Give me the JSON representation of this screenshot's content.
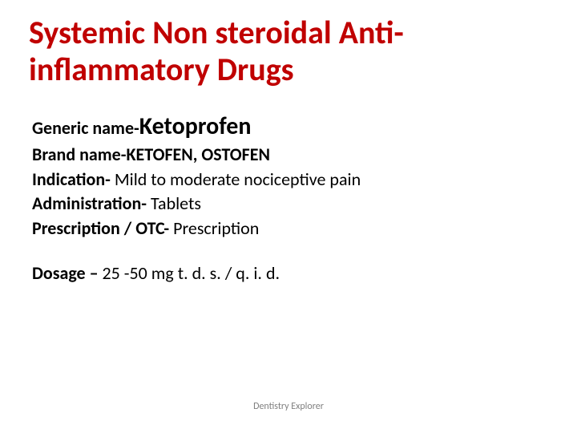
{
  "title": "Systemic Non steroidal Anti-inflammatory Drugs",
  "generic": {
    "label": "Generic name-",
    "value": "Ketoprofen"
  },
  "brand": {
    "label": "Brand name-",
    "value": "KETOFEN, OSTOFEN"
  },
  "indication": {
    "label": "Indication- ",
    "value": "Mild to moderate nociceptive pain"
  },
  "administration": {
    "label": "Administration- ",
    "value": "Tablets"
  },
  "prescription": {
    "label": "Prescription / OTC-  ",
    "value": "Prescription"
  },
  "dosage": {
    "label": "Dosage – ",
    "value": " 25 -50 mg t. d. s. / q. i. d."
  },
  "footer": "Dentistry Explorer",
  "colors": {
    "title": "#c00000",
    "text": "#000000",
    "footer": "#808080",
    "background": "#ffffff"
  },
  "fonts": {
    "title_size": 40,
    "generic_value_size": 30,
    "body_size": 22,
    "footer_size": 12
  }
}
